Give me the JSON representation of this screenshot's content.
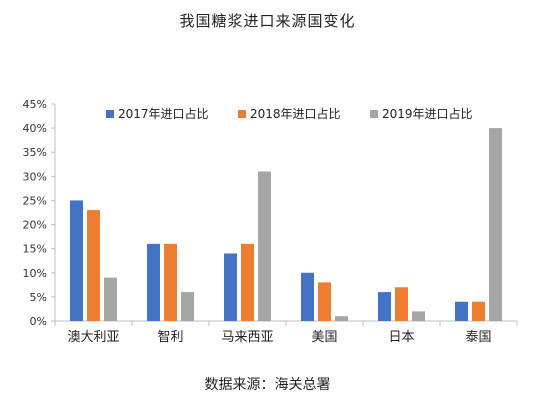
{
  "chart_data": {
    "type": "bar",
    "title": "我国糖浆进口来源国变化",
    "source": "数据来源：海关总署",
    "categories": [
      "澳大利亚",
      "智利",
      "马来西亚",
      "美国",
      "日本",
      "泰国"
    ],
    "series": [
      {
        "name": "2017年进口占比",
        "color": "#4472C4",
        "values": [
          25,
          16,
          14,
          10,
          6,
          4
        ]
      },
      {
        "name": "2018年进口占比",
        "color": "#ED7D31",
        "values": [
          23,
          16,
          16,
          8,
          7,
          4
        ]
      },
      {
        "name": "2019年进口占比",
        "color": "#A5A5A5",
        "values": [
          9,
          6,
          31,
          1,
          2,
          40
        ]
      }
    ],
    "ylim": [
      0,
      45
    ],
    "yticks": [
      "0%",
      "5%",
      "10%",
      "15%",
      "20%",
      "25%",
      "30%",
      "35%",
      "40%",
      "45%"
    ],
    "legend_position": "top",
    "grid": false
  }
}
